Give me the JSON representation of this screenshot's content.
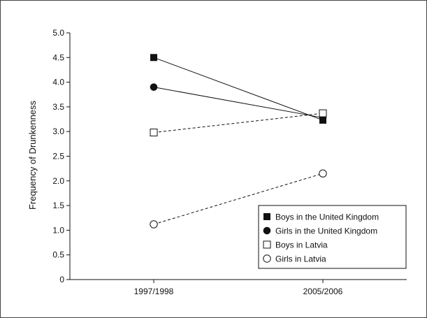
{
  "chart_data": {
    "type": "line",
    "ylabel": "Frequency of Drunkenness",
    "xlabel": "",
    "categories": [
      "1997/1998",
      "2005/2006"
    ],
    "ylim": [
      0,
      5.0
    ],
    "yticks": [
      "0",
      "0.5",
      "1.0",
      "1.5",
      "2.0",
      "2.5",
      "3.0",
      "3.5",
      "4.0",
      "4.5",
      "5.0"
    ],
    "grid": false,
    "legend_position": "bottom-right",
    "series": [
      {
        "name": "Boys in the United Kingdom",
        "values": [
          4.5,
          3.23
        ],
        "marker": "filled-square",
        "line": "solid"
      },
      {
        "name": "Girls in the United Kingdom",
        "values": [
          3.9,
          3.28
        ],
        "marker": "filled-circle",
        "line": "solid"
      },
      {
        "name": "Boys in Latvia",
        "values": [
          2.98,
          3.37
        ],
        "marker": "open-square",
        "line": "dashed"
      },
      {
        "name": "Girls in Latvia",
        "values": [
          1.12,
          2.15
        ],
        "marker": "open-circle",
        "line": "dashed"
      }
    ]
  }
}
